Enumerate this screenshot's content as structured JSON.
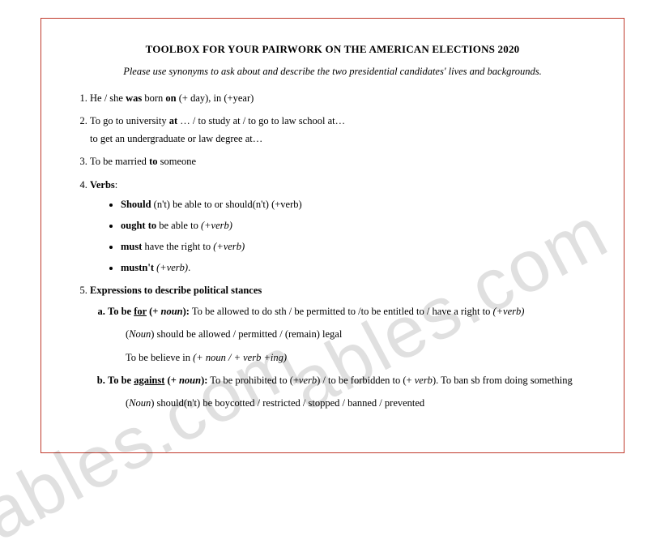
{
  "title": "TOOLBOX FOR YOUR PAIRWORK ON THE AMERICAN ELECTIONS 2020",
  "subtitle": "Please use synonyms to ask about and describe the two presidential candidates' lives and backgrounds.",
  "items": [
    {
      "pre": "He / she ",
      "bold": "was",
      "mid": " born ",
      "bold2": "on",
      "post": " (+ day), in (+year)"
    },
    {
      "text1": "To go to university ",
      "bold1": "at",
      "text2": " … / to study at / to go to law school at…",
      "sub": "to get an undergraduate or law degree at…"
    },
    {
      "text1": "To be married ",
      "bold1": "to",
      "text2": " someone"
    },
    {
      "heading": "Verbs",
      "bullets": [
        {
          "bold": "Should",
          "rest": " (n't) be able to or should(n't) (+verb)"
        },
        {
          "bold": "ought to",
          "rest_i": " be able to ",
          "paren": "(+verb)"
        },
        {
          "bold": "must",
          "rest": " have the right to ",
          "paren": "(+verb)"
        },
        {
          "bold": "mustn't",
          "rest": " ",
          "paren": "(+verb)",
          "tail": "."
        }
      ]
    },
    {
      "heading": "Expressions to describe political stances",
      "subs": [
        {
          "label_pre": "To be ",
          "label_u": "for",
          "label_post": " (+ ",
          "label_i": "noun",
          "label_close": "):",
          "def": " To be allowed to do sth / be permitted to /to be entitled to / have a right to ",
          "def_paren": "(+verb)",
          "p1_pre": "(",
          "p1_i": "Noun",
          "p1_post": ") should be allowed / permitted / (remain) legal",
          "p2": "To be believe in ",
          "p2_paren": "(+ noun / + verb +ing)"
        },
        {
          "label_pre": "To be ",
          "label_u": "against",
          "label_post": " (+ ",
          "label_i": "noun",
          "label_close": "):",
          "def": " To be prohibited to (+",
          "def_i": "verb",
          "def2": ") / to be forbidden to (+ ",
          "def_i2": "verb",
          "def3": ").  To ban sb from doing something",
          "p1_pre": "(",
          "p1_i": "Noun",
          "p1_post": ") should(n't) be boycotted / restricted / stopped / banned / prevented"
        }
      ]
    }
  ],
  "watermark": "ables.com",
  "colors": {
    "border": "#c0392b",
    "text": "#000000",
    "watermark": "rgba(0,0,0,0.12)"
  }
}
